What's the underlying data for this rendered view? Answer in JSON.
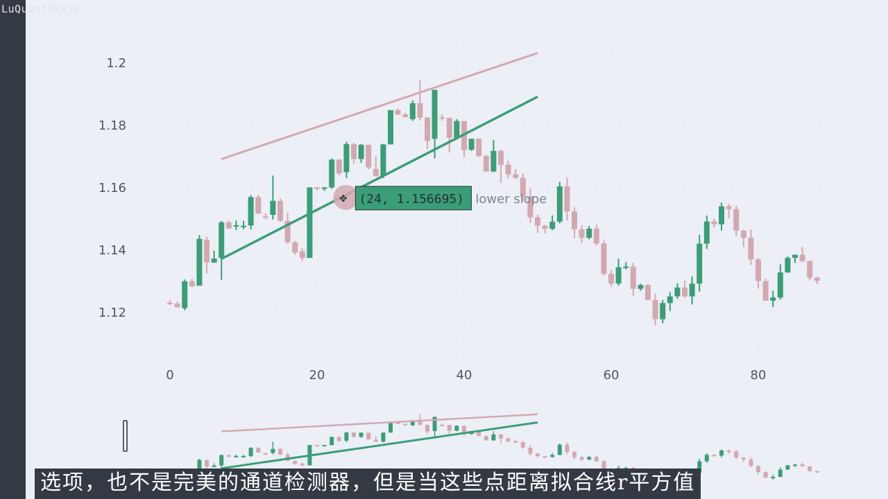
{
  "watermark": "LuQuant中文台",
  "subtitle": "选项，也不是完美的通道检测器，但是当这些点距离拟合线r平方值",
  "tooltip": {
    "text": "(24, 1.156695)",
    "x": 24,
    "y": 1.156695
  },
  "annotation": "lower slope",
  "colors": {
    "up": "#3a9e78",
    "down": "#d4a8b0",
    "upper_line": "#d4a8b0",
    "lower_line": "#3a9e78",
    "tooltip_bg": "#3a9e78"
  },
  "chart_data": {
    "type": "candlestick",
    "xlim": [
      -1,
      97
    ],
    "ylim": [
      1.105,
      1.21
    ],
    "x_ticks": [
      0,
      20,
      40,
      60,
      80
    ],
    "y_ticks": [
      1.12,
      1.14,
      1.16,
      1.18,
      1.2
    ],
    "x_tick_labels": [
      "0",
      "20",
      "40",
      "60",
      "80"
    ],
    "y_tick_labels": [
      "1.12",
      "1.14",
      "1.16",
      "1.18",
      "1.2"
    ],
    "upper_channel": {
      "x": [
        7,
        50
      ],
      "y": [
        1.169,
        1.203
      ]
    },
    "lower_channel": {
      "x": [
        7,
        50
      ],
      "y": [
        1.137,
        1.189
      ]
    },
    "candles": [
      [
        1.1229,
        1.1226,
        1.1222,
        1.1237
      ],
      [
        1.1226,
        1.1215,
        1.1213,
        1.1233
      ],
      [
        1.1212,
        1.1298,
        1.1205,
        1.1304
      ],
      [
        1.1298,
        1.1282,
        1.1279,
        1.1306
      ],
      [
        1.1284,
        1.1434,
        1.1284,
        1.1446
      ],
      [
        1.1431,
        1.1359,
        1.1323,
        1.1441
      ],
      [
        1.1358,
        1.1371,
        1.1358,
        1.1396
      ],
      [
        1.1373,
        1.1487,
        1.1303,
        1.1492
      ],
      [
        1.1487,
        1.1468,
        1.1465,
        1.1493
      ],
      [
        1.1475,
        1.1478,
        1.1462,
        1.1493
      ],
      [
        1.1472,
        1.1476,
        1.1465,
        1.1492
      ],
      [
        1.1477,
        1.1568,
        1.1464,
        1.1574
      ],
      [
        1.1568,
        1.1515,
        1.1515,
        1.1575
      ],
      [
        1.1506,
        1.1502,
        1.1497,
        1.1516
      ],
      [
        1.1511,
        1.1556,
        1.1496,
        1.1637
      ],
      [
        1.1556,
        1.1492,
        1.1489,
        1.1564
      ],
      [
        1.1492,
        1.1423,
        1.1419,
        1.1518
      ],
      [
        1.1423,
        1.139,
        1.1383,
        1.1428
      ],
      [
        1.1394,
        1.1373,
        1.1363,
        1.1403
      ],
      [
        1.1373,
        1.1599,
        1.1373,
        1.1599
      ],
      [
        1.1599,
        1.1595,
        1.1589,
        1.16
      ],
      [
        1.1597,
        1.1599,
        1.1588,
        1.16
      ],
      [
        1.1599,
        1.1688,
        1.1595,
        1.1692
      ],
      [
        1.1688,
        1.1644,
        1.1637,
        1.169
      ],
      [
        1.1648,
        1.1738,
        1.1629,
        1.1745
      ],
      [
        1.1738,
        1.169,
        1.1676,
        1.1742
      ],
      [
        1.169,
        1.1736,
        1.1678,
        1.1738
      ],
      [
        1.1736,
        1.1663,
        1.1657,
        1.1736
      ],
      [
        1.1658,
        1.1635,
        1.1635,
        1.1699
      ],
      [
        1.1636,
        1.1737,
        1.1629,
        1.1739
      ],
      [
        1.1737,
        1.1847,
        1.1737,
        1.1847
      ],
      [
        1.1847,
        1.1833,
        1.1831,
        1.1852
      ],
      [
        1.1833,
        1.1825,
        1.1823,
        1.1838
      ],
      [
        1.1818,
        1.1869,
        1.1812,
        1.1878
      ],
      [
        1.1869,
        1.1823,
        1.1814,
        1.1942
      ],
      [
        1.1823,
        1.1748,
        1.1721,
        1.1825
      ],
      [
        1.1755,
        1.1912,
        1.1692,
        1.1912
      ],
      [
        1.1824,
        1.1821,
        1.1813,
        1.1833
      ],
      [
        1.1822,
        1.1758,
        1.1711,
        1.1823
      ],
      [
        1.1758,
        1.1812,
        1.1752,
        1.1818
      ],
      [
        1.1812,
        1.1719,
        1.1696,
        1.1812
      ],
      [
        1.172,
        1.1755,
        1.1716,
        1.1755
      ],
      [
        1.1755,
        1.17,
        1.1697,
        1.1756
      ],
      [
        1.17,
        1.165,
        1.165,
        1.1704
      ],
      [
        1.165,
        1.1716,
        1.1648,
        1.1751
      ],
      [
        1.1716,
        1.1671,
        1.1614,
        1.172
      ],
      [
        1.1672,
        1.1641,
        1.1628,
        1.1684
      ]
    ]
  }
}
